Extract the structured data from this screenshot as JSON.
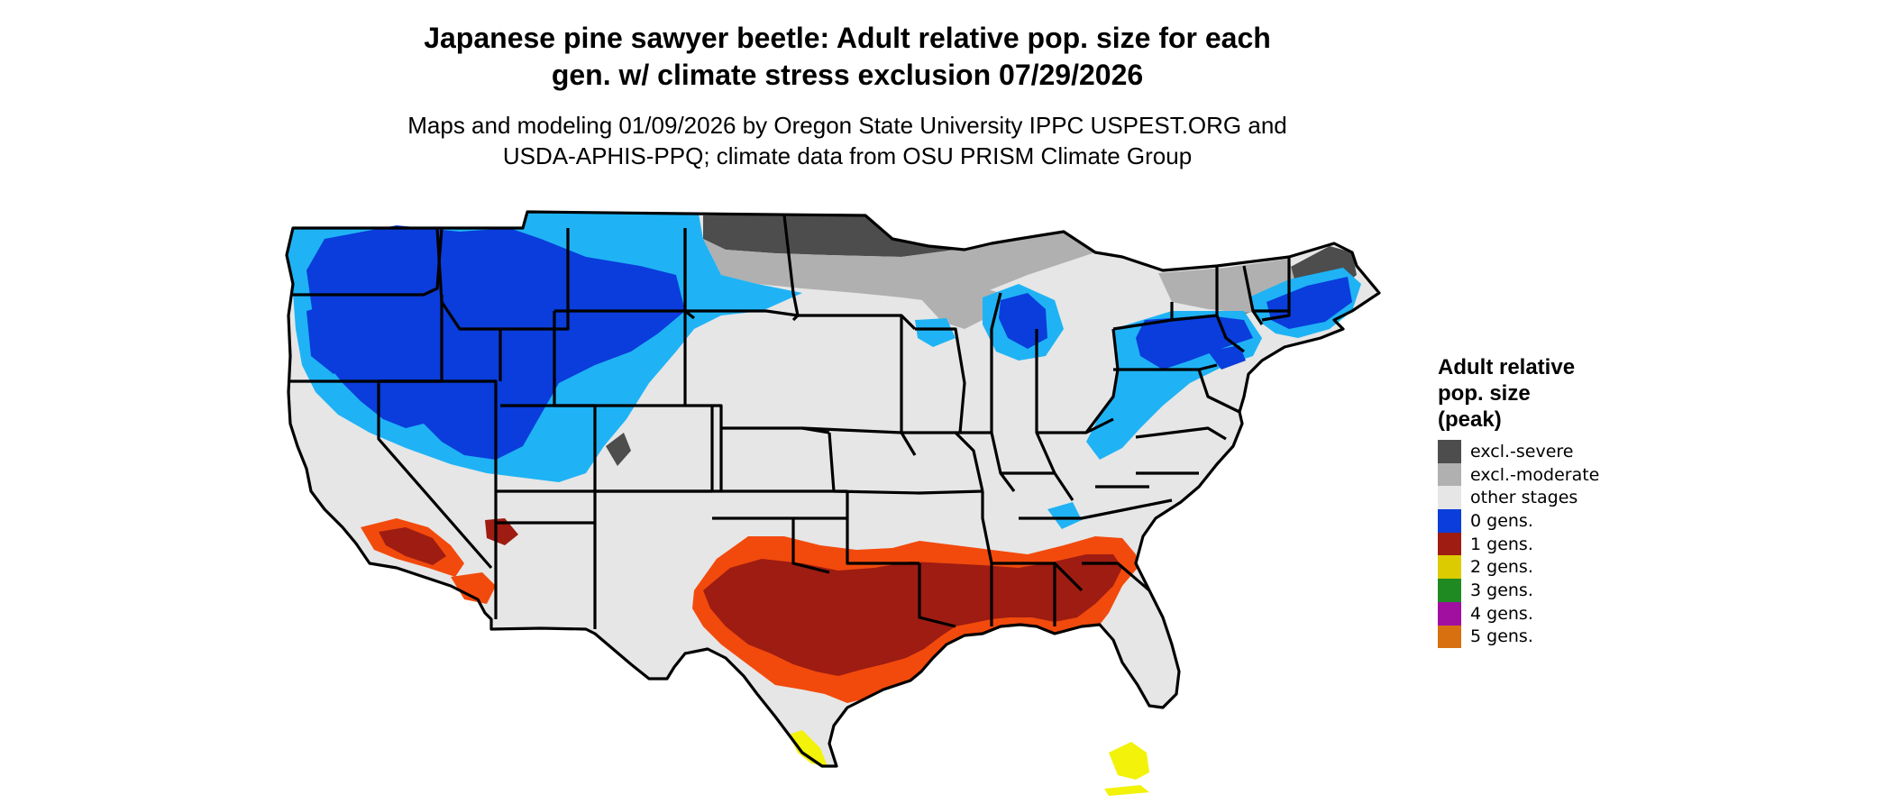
{
  "header": {
    "title_line1": "Japanese pine sawyer beetle: Adult relative pop. size for each",
    "title_line2": "gen. w/ climate stress exclusion 07/29/2026",
    "subtitle_line1": "Maps and modeling 01/09/2026 by Oregon State University IPPC USPEST.ORG and",
    "subtitle_line2": "USDA-APHIS-PPQ; climate data from OSU PRISM Climate Group"
  },
  "legend": {
    "title_line1": "Adult relative",
    "title_line2": "pop. size",
    "title_line3": "(peak)",
    "items": [
      {
        "label": "excl.-severe",
        "color": "#4d4d4d"
      },
      {
        "label": "excl.-moderate",
        "color": "#b0b0b0"
      },
      {
        "label": "other stages",
        "color": "#e6e6e6"
      },
      {
        "label": "0 gens.",
        "color": "#0a3ddb"
      },
      {
        "label": "1 gens.",
        "color": "#9e1c12"
      },
      {
        "label": "2 gens.",
        "color": "#dccb00"
      },
      {
        "label": "3 gens.",
        "color": "#1f8a22"
      },
      {
        "label": "4 gens.",
        "color": "#a10fa1"
      },
      {
        "label": "5 gens.",
        "color": "#d9700f"
      }
    ]
  },
  "map": {
    "region": "contiguous United States",
    "colors": {
      "excl_severe": "#4d4d4d",
      "excl_moderate": "#b0b0b0",
      "other_stages": "#e6e6e6",
      "gens0_dark": "#0a3ddb",
      "gens0_light": "#1fb3f5",
      "gens1_dark": "#9e1c12",
      "gens1_light": "#f24a0c",
      "gens2": "#f2f20a",
      "border": "#000000"
    }
  }
}
